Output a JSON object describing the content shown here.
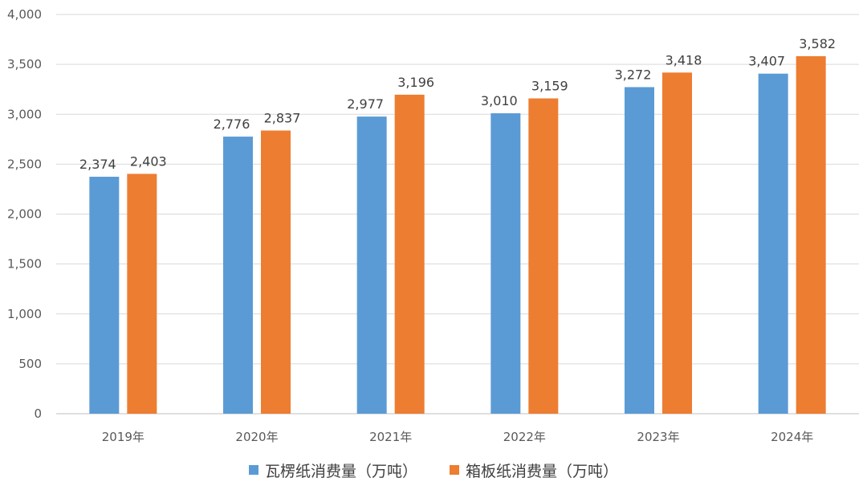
{
  "chart_data": {
    "type": "bar",
    "categories": [
      "2019年",
      "2020年",
      "2021年",
      "2022年",
      "2023年",
      "2024年"
    ],
    "series": [
      {
        "name": "瓦楞纸消费量（万吨）",
        "color": "#5B9BD5",
        "values": [
          2374,
          2776,
          2977,
          3010,
          3272,
          3407
        ],
        "labels": [
          "2,374",
          "2,776",
          "2,977",
          "3,010",
          "3,272",
          "3,407"
        ]
      },
      {
        "name": "箱板纸消费量（万吨）",
        "color": "#ED7D31",
        "values": [
          2403,
          2837,
          3196,
          3159,
          3418,
          3582
        ],
        "labels": [
          "2,403",
          "2,837",
          "3,196",
          "3,159",
          "3,418",
          "3,582"
        ]
      }
    ],
    "yticks": [
      "0",
      "500",
      "1,000",
      "1,500",
      "2,000",
      "2,500",
      "3,000",
      "3,500",
      "4,000"
    ],
    "ylim": [
      0,
      4000
    ],
    "grid": true,
    "legend_position": "bottom"
  }
}
